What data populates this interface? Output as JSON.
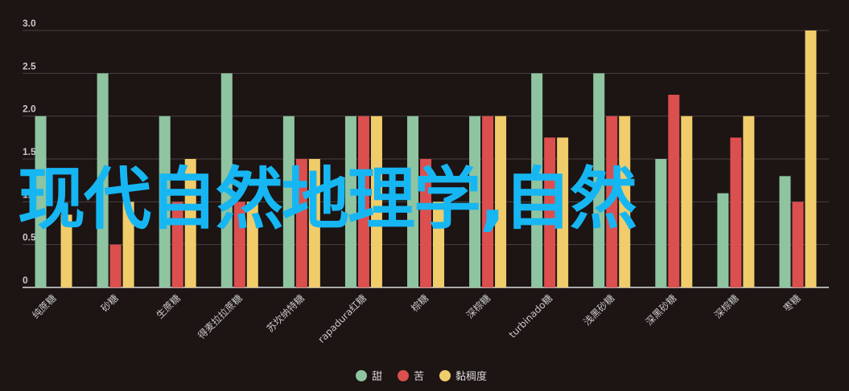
{
  "chart_data": {
    "type": "bar",
    "categories": [
      "纯蔗糖",
      "砂糖",
      "生蔗糖",
      "得麦拉拉蔗糖",
      "苏坎纳特糖",
      "rapadura红糖",
      "棕糖",
      "深棕糖",
      "turbinado糖",
      "浅黑砂糖",
      "深黑砂糖",
      "深棕糖",
      "枣糖"
    ],
    "series": [
      {
        "name": "甜",
        "color": "#8fc4a1",
        "values": [
          2.0,
          2.5,
          2.0,
          2.5,
          2.0,
          2.0,
          2.0,
          2.0,
          2.5,
          2.5,
          1.5,
          1.1,
          1.3
        ]
      },
      {
        "name": "苦",
        "color": "#db4f4f",
        "values": [
          0,
          0.5,
          1.0,
          1.0,
          1.5,
          2.0,
          1.5,
          2.0,
          1.75,
          2.0,
          2.25,
          1.75,
          1.0
        ]
      },
      {
        "name": "黏稠度",
        "color": "#f0cd6a",
        "values": [
          0.85,
          1.0,
          1.5,
          1.0,
          1.5,
          2.0,
          1.0,
          2.0,
          1.75,
          2.0,
          2.0,
          2.0,
          3.0
        ]
      }
    ],
    "yticks": [
      "0",
      "0.5",
      "1.0",
      "1.5",
      "2.0",
      "2.5",
      "3.0"
    ],
    "ylim": [
      0,
      3
    ],
    "grid": true,
    "legend_position": "bottom-center"
  },
  "overlay_text": "现代自然地理学,自然"
}
